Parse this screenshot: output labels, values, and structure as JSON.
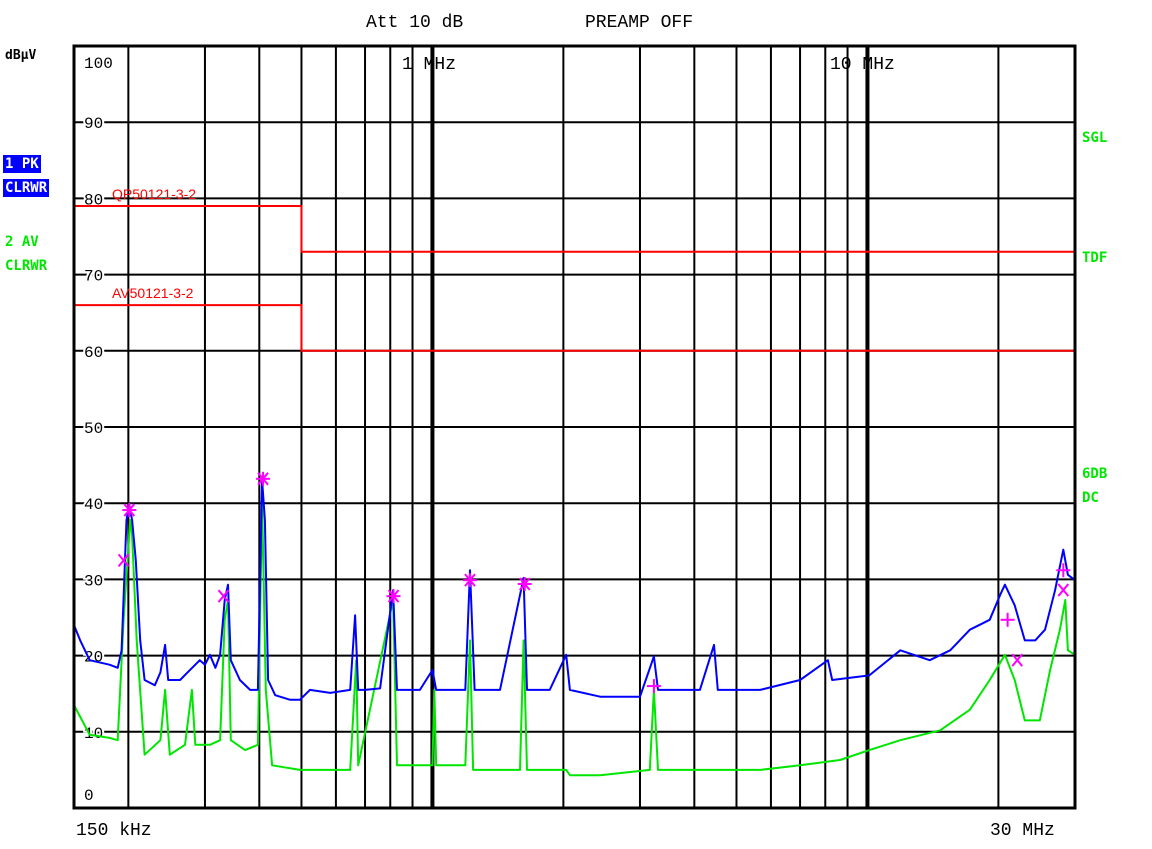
{
  "header": {
    "attenuation": "Att 10 dB",
    "preamp": "PREAMP OFF"
  },
  "left_labels": {
    "unit": "dBµV",
    "trace1_mode": "1 PK",
    "trace1_clear": "CLRWR",
    "trace2_mode": "2 AV",
    "trace2_clear": "CLRWR"
  },
  "right_labels": {
    "sgl": "SGL",
    "tdf": "TDF",
    "6db": "6DB",
    "dc": "DC"
  },
  "colors": {
    "peak_trace": "#0000ff",
    "average_trace": "#00e600",
    "limit": "#ff0000",
    "marker": "#ff00ff",
    "trace1_badge_bg": "#0000ff"
  },
  "chart_data": {
    "type": "line",
    "xscale": "log",
    "xlim_mhz": [
      0.15,
      30
    ],
    "ylim": [
      0,
      100
    ],
    "ylabel": "dBµV",
    "x_tick_labels": {
      "start": "150 kHz",
      "end": "30 MHz",
      "decade1": "1 MHz",
      "decade2": "10 MHz"
    },
    "y_ticks": [
      "100",
      "90",
      "80",
      "70",
      "60",
      "50",
      "40",
      "30",
      "20",
      "10",
      "0"
    ],
    "grid": true,
    "limits": [
      {
        "name": "QP50121-3-2",
        "points": [
          [
            0.15,
            79
          ],
          [
            0.5,
            79
          ],
          [
            0.5,
            73
          ],
          [
            30,
            73
          ]
        ]
      },
      {
        "name": "AV50121-3-2",
        "points": [
          [
            0.15,
            66
          ],
          [
            0.5,
            66
          ],
          [
            0.5,
            60
          ],
          [
            30,
            60
          ]
        ]
      }
    ],
    "series": [
      {
        "name": "1 PK",
        "color": "#0000ff",
        "points": [
          [
            0.15,
            24.0
          ],
          [
            0.155,
            22.0
          ],
          [
            0.163,
            19.4
          ],
          [
            0.181,
            18.8
          ],
          [
            0.189,
            18.4
          ],
          [
            0.193,
            20.7
          ],
          [
            0.198,
            37.8
          ],
          [
            0.201,
            39.8
          ],
          [
            0.204,
            37.8
          ],
          [
            0.208,
            32.5
          ],
          [
            0.213,
            22.0
          ],
          [
            0.218,
            16.8
          ],
          [
            0.23,
            16.1
          ],
          [
            0.237,
            17.8
          ],
          [
            0.243,
            21.4
          ],
          [
            0.247,
            16.8
          ],
          [
            0.263,
            16.8
          ],
          [
            0.277,
            18.1
          ],
          [
            0.292,
            19.4
          ],
          [
            0.3,
            18.8
          ],
          [
            0.308,
            20.1
          ],
          [
            0.317,
            18.4
          ],
          [
            0.325,
            20.1
          ],
          [
            0.333,
            27.3
          ],
          [
            0.339,
            29.3
          ],
          [
            0.344,
            19.4
          ],
          [
            0.361,
            16.8
          ],
          [
            0.381,
            15.5
          ],
          [
            0.397,
            15.5
          ],
          [
            0.406,
            43.0
          ],
          [
            0.412,
            37.8
          ],
          [
            0.419,
            16.8
          ],
          [
            0.435,
            14.8
          ],
          [
            0.471,
            14.2
          ],
          [
            0.496,
            14.2
          ],
          [
            0.523,
            15.5
          ],
          [
            0.582,
            15.1
          ],
          [
            0.647,
            15.5
          ],
          [
            0.664,
            25.3
          ],
          [
            0.675,
            15.5
          ],
          [
            0.7,
            15.5
          ],
          [
            0.758,
            15.7
          ],
          [
            0.812,
            28.6
          ],
          [
            0.829,
            15.5
          ],
          [
            0.936,
            15.5
          ],
          [
            1.0,
            18.1
          ],
          [
            1.02,
            15.5
          ],
          [
            1.1,
            15.5
          ],
          [
            1.19,
            15.5
          ],
          [
            1.22,
            31.2
          ],
          [
            1.25,
            15.5
          ],
          [
            1.43,
            15.5
          ],
          [
            1.62,
            30.2
          ],
          [
            1.65,
            15.5
          ],
          [
            1.86,
            15.5
          ],
          [
            2.03,
            20.1
          ],
          [
            2.07,
            15.5
          ],
          [
            2.43,
            14.6
          ],
          [
            3.0,
            14.6
          ],
          [
            3.23,
            19.9
          ],
          [
            3.3,
            15.5
          ],
          [
            4.12,
            15.5
          ],
          [
            4.44,
            21.4
          ],
          [
            4.53,
            15.5
          ],
          [
            5.67,
            15.5
          ],
          [
            7.0,
            16.8
          ],
          [
            8.11,
            19.4
          ],
          [
            8.3,
            16.8
          ],
          [
            10.1,
            17.4
          ],
          [
            11.9,
            20.7
          ],
          [
            13.9,
            19.4
          ],
          [
            15.5,
            20.7
          ],
          [
            17.2,
            23.4
          ],
          [
            19.1,
            24.7
          ],
          [
            20.2,
            28.0
          ],
          [
            20.7,
            29.3
          ],
          [
            21.8,
            26.6
          ],
          [
            23.0,
            22.0
          ],
          [
            24.3,
            22.0
          ],
          [
            25.6,
            23.4
          ],
          [
            27.0,
            28.6
          ],
          [
            28.2,
            33.9
          ],
          [
            28.9,
            30.6
          ],
          [
            30.0,
            29.9
          ]
        ]
      },
      {
        "name": "2 AV",
        "color": "#00e600",
        "points": [
          [
            0.15,
            13.5
          ],
          [
            0.163,
            9.6
          ],
          [
            0.181,
            9.2
          ],
          [
            0.189,
            8.9
          ],
          [
            0.195,
            24.7
          ],
          [
            0.202,
            37.8
          ],
          [
            0.204,
            35.8
          ],
          [
            0.209,
            22.0
          ],
          [
            0.218,
            7.0
          ],
          [
            0.237,
            8.9
          ],
          [
            0.243,
            15.5
          ],
          [
            0.249,
            7.0
          ],
          [
            0.27,
            8.3
          ],
          [
            0.28,
            15.5
          ],
          [
            0.285,
            8.3
          ],
          [
            0.308,
            8.3
          ],
          [
            0.325,
            8.9
          ],
          [
            0.333,
            24.7
          ],
          [
            0.339,
            27.3
          ],
          [
            0.344,
            8.9
          ],
          [
            0.371,
            7.6
          ],
          [
            0.397,
            8.3
          ],
          [
            0.406,
            40.4
          ],
          [
            0.414,
            15.5
          ],
          [
            0.428,
            5.6
          ],
          [
            0.496,
            5.0
          ],
          [
            0.647,
            5.0
          ],
          [
            0.668,
            19.4
          ],
          [
            0.675,
            5.6
          ],
          [
            0.812,
            27.3
          ],
          [
            0.829,
            5.6
          ],
          [
            1.0,
            5.6
          ],
          [
            1.01,
            15.5
          ],
          [
            1.02,
            5.6
          ],
          [
            1.19,
            5.6
          ],
          [
            1.22,
            22.0
          ],
          [
            1.24,
            5.0
          ],
          [
            1.59,
            5.0
          ],
          [
            1.62,
            22.0
          ],
          [
            1.65,
            5.0
          ],
          [
            2.03,
            5.0
          ],
          [
            2.07,
            4.3
          ],
          [
            2.43,
            4.3
          ],
          [
            3.16,
            5.0
          ],
          [
            3.23,
            15.5
          ],
          [
            3.3,
            5.0
          ],
          [
            4.12,
            5.0
          ],
          [
            5.67,
            5.0
          ],
          [
            7.0,
            5.6
          ],
          [
            8.65,
            6.3
          ],
          [
            10.1,
            7.6
          ],
          [
            11.9,
            8.9
          ],
          [
            14.7,
            10.2
          ],
          [
            17.2,
            12.9
          ],
          [
            19.1,
            16.8
          ],
          [
            20.7,
            20.1
          ],
          [
            21.8,
            16.8
          ],
          [
            23.0,
            11.5
          ],
          [
            24.9,
            11.5
          ],
          [
            26.3,
            18.1
          ],
          [
            27.7,
            23.4
          ],
          [
            28.5,
            27.3
          ],
          [
            28.9,
            20.7
          ],
          [
            30.0,
            20.1
          ]
        ]
      }
    ],
    "markers": [
      {
        "f": 0.195,
        "level": 32.5,
        "shape": "x"
      },
      {
        "f": 0.201,
        "level": 39.1,
        "shape": "asterisk"
      },
      {
        "f": 0.331,
        "level": 27.8,
        "shape": "x"
      },
      {
        "f": 0.408,
        "level": 43.2,
        "shape": "asterisk"
      },
      {
        "f": 0.814,
        "level": 27.8,
        "shape": "asterisk"
      },
      {
        "f": 1.22,
        "level": 29.9,
        "shape": "asterisk"
      },
      {
        "f": 1.63,
        "level": 29.4,
        "shape": "asterisk"
      },
      {
        "f": 3.23,
        "level": 16.0,
        "shape": "plus"
      },
      {
        "f": 21.0,
        "level": 24.7,
        "shape": "plus"
      },
      {
        "f": 22.1,
        "level": 19.4,
        "shape": "x"
      },
      {
        "f": 28.2,
        "level": 31.2,
        "shape": "plus"
      },
      {
        "f": 28.2,
        "level": 28.6,
        "shape": "x"
      }
    ]
  }
}
